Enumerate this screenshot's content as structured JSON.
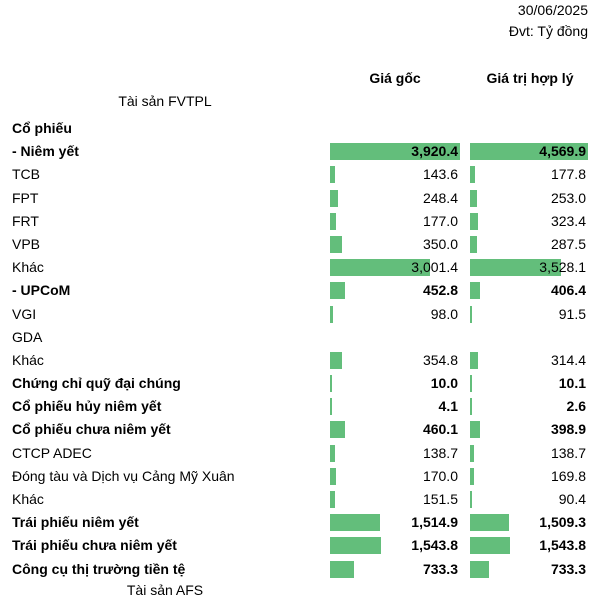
{
  "header": {
    "date": "30/06/2025",
    "unit": "Đvt: Tỷ đồng"
  },
  "columns": {
    "cost": "Giá gốc",
    "fair_value": "Giá trị hợp lý"
  },
  "section_fvtpl": "Tài sản FVTPL",
  "section_afs": "Tài sản AFS",
  "bar_color": "#63be7b",
  "scale_max": {
    "cost": 3920.4,
    "fair_value": 4569.9
  },
  "rows": [
    {
      "name": "Cổ phiếu",
      "bold": true,
      "cost": null,
      "cost_text": "",
      "fair": null,
      "fair_text": ""
    },
    {
      "name": "- Niêm yết",
      "bold": true,
      "cost": 3920.4,
      "cost_text": "3,920.4",
      "fair": 4569.9,
      "fair_text": "4,569.9"
    },
    {
      "name": "TCB",
      "bold": false,
      "cost": 143.6,
      "cost_text": "143.6",
      "fair": 177.8,
      "fair_text": "177.8"
    },
    {
      "name": "FPT",
      "bold": false,
      "cost": 248.4,
      "cost_text": "248.4",
      "fair": 253.0,
      "fair_text": "253.0"
    },
    {
      "name": "FRT",
      "bold": false,
      "cost": 177.0,
      "cost_text": "177.0",
      "fair": 323.4,
      "fair_text": "323.4"
    },
    {
      "name": "VPB",
      "bold": false,
      "cost": 350.0,
      "cost_text": "350.0",
      "fair": 287.5,
      "fair_text": "287.5"
    },
    {
      "name": "Khác",
      "bold": false,
      "cost": 3001.4,
      "cost_text": "3,001.4",
      "fair": 3528.1,
      "fair_text": "3,528.1"
    },
    {
      "name": "- UPCoM",
      "bold": true,
      "cost": 452.8,
      "cost_text": "452.8",
      "fair": 406.4,
      "fair_text": "406.4"
    },
    {
      "name": "VGI",
      "bold": false,
      "cost": 98.0,
      "cost_text": "98.0",
      "fair": 91.5,
      "fair_text": "91.5"
    },
    {
      "name": "GDA",
      "bold": false,
      "cost": null,
      "cost_text": "",
      "fair": null,
      "fair_text": ""
    },
    {
      "name": "Khác",
      "bold": false,
      "cost": 354.8,
      "cost_text": "354.8",
      "fair": 314.4,
      "fair_text": "314.4"
    },
    {
      "name": "Chứng chỉ quỹ đại chúng",
      "bold": true,
      "cost": 10.0,
      "cost_text": "10.0",
      "fair": 10.1,
      "fair_text": "10.1"
    },
    {
      "name": "Cổ phiếu hủy niêm yết",
      "bold": true,
      "cost": 4.1,
      "cost_text": "4.1",
      "fair": 2.6,
      "fair_text": "2.6"
    },
    {
      "name": "Cổ phiếu chưa niêm yết",
      "bold": true,
      "cost": 460.1,
      "cost_text": "460.1",
      "fair": 398.9,
      "fair_text": "398.9"
    },
    {
      "name": "CTCP ADEC",
      "bold": false,
      "cost": 138.7,
      "cost_text": "138.7",
      "fair": 138.7,
      "fair_text": "138.7"
    },
    {
      "name": "Đóng tàu và Dịch vụ Cảng Mỹ Xuân",
      "bold": false,
      "cost": 170.0,
      "cost_text": "170.0",
      "fair": 169.8,
      "fair_text": "169.8"
    },
    {
      "name": "Khác",
      "bold": false,
      "cost": 151.5,
      "cost_text": "151.5",
      "fair": 90.4,
      "fair_text": "90.4"
    },
    {
      "name": "Trái phiếu niêm yết",
      "bold": true,
      "cost": 1514.9,
      "cost_text": "1,514.9",
      "fair": 1509.3,
      "fair_text": "1,509.3"
    },
    {
      "name": "Trái phiếu chưa niêm yết",
      "bold": true,
      "cost": 1543.8,
      "cost_text": "1,543.8",
      "fair": 1543.8,
      "fair_text": "1,543.8"
    },
    {
      "name": "Công cụ thị trường tiền tệ",
      "bold": true,
      "cost": 733.3,
      "cost_text": "733.3",
      "fair": 733.3,
      "fair_text": "733.3"
    }
  ]
}
